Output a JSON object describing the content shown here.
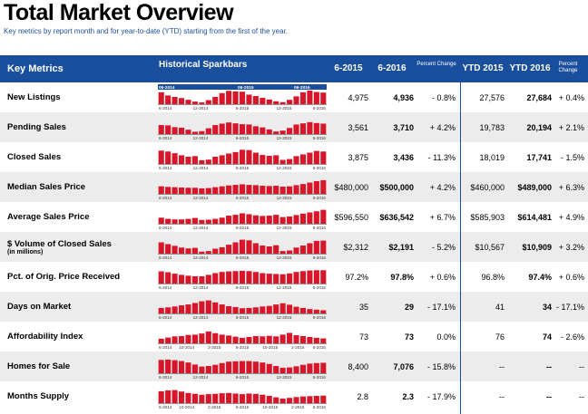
{
  "title": "Total Market Overview",
  "subtitle": "Key metrics by report month and for year-to-date (YTD) starting from the first of the year.",
  "header": {
    "key_metrics": "Key Metrics",
    "sparkbars": "Historical Sparkbars",
    "col_a": "6-2015",
    "col_b": "6-2016",
    "pct_change": "Percent Change",
    "ytd_a": "YTD 2015",
    "ytd_b": "YTD 2016",
    "ytd_pct_change": "Percent Change",
    "banner_labels": [
      "06-2014",
      "06-2015",
      "06-2016"
    ]
  },
  "colors": {
    "accent": "#1a4f9e",
    "bar": "#d7162a",
    "row_alt": "#ececec"
  },
  "rows": [
    {
      "label": "New Listings",
      "sublabel": "",
      "a": "4,975",
      "b": "4,936",
      "pc": "- 0.8%",
      "ya": "27,576",
      "yb": "27,684",
      "ypc": "+ 0.4%",
      "ticks": [
        "6-2014",
        "12-2014",
        "6-2015",
        "12-2015",
        "6-2016"
      ],
      "bars": [
        0.82,
        0.6,
        0.5,
        0.42,
        0.3,
        0.18,
        0.12,
        0.28,
        0.5,
        0.76,
        0.92,
        0.88,
        0.86,
        0.66,
        0.56,
        0.44,
        0.32,
        0.2,
        0.14,
        0.3,
        0.54,
        0.82,
        0.94,
        0.84,
        0.8
      ]
    },
    {
      "label": "Pending Sales",
      "sublabel": "",
      "a": "3,561",
      "b": "3,710",
      "pc": "+ 4.2%",
      "ya": "19,783",
      "yb": "20,194",
      "ypc": "+ 2.1%",
      "ticks": [
        "6-2014",
        "12-2014",
        "6-2015",
        "12-2015",
        "6-2016"
      ],
      "bars": [
        0.62,
        0.6,
        0.48,
        0.44,
        0.3,
        0.16,
        0.2,
        0.4,
        0.62,
        0.72,
        0.8,
        0.74,
        0.68,
        0.66,
        0.54,
        0.46,
        0.32,
        0.18,
        0.24,
        0.42,
        0.66,
        0.74,
        0.82,
        0.76,
        0.72
      ]
    },
    {
      "label": "Closed Sales",
      "sublabel": "",
      "a": "3,875",
      "b": "3,436",
      "pc": "- 11.3%",
      "ya": "18,019",
      "yb": "17,741",
      "ypc": "- 1.5%",
      "ticks": [
        "6-2014",
        "12-2014",
        "6-2015",
        "12-2015",
        "6-2016"
      ],
      "bars": [
        0.92,
        0.86,
        0.74,
        0.6,
        0.5,
        0.54,
        0.26,
        0.3,
        0.5,
        0.6,
        0.72,
        0.82,
        0.98,
        0.96,
        0.78,
        0.62,
        0.56,
        0.6,
        0.28,
        0.34,
        0.54,
        0.66,
        0.78,
        0.9,
        0.86
      ]
    },
    {
      "label": "Median Sales Price",
      "sublabel": "",
      "a": "$480,000",
      "b": "$500,000",
      "pc": "+ 4.2%",
      "ya": "$460,000",
      "yb": "$489,000",
      "ypc": "+ 6.3%",
      "ticks": [
        "6-2014",
        "12-2014",
        "6-2015",
        "12-2015",
        "6-2016"
      ],
      "bars": [
        0.52,
        0.48,
        0.46,
        0.44,
        0.42,
        0.42,
        0.38,
        0.4,
        0.46,
        0.52,
        0.58,
        0.62,
        0.66,
        0.62,
        0.6,
        0.56,
        0.54,
        0.56,
        0.5,
        0.52,
        0.6,
        0.68,
        0.78,
        0.88,
        0.94
      ]
    },
    {
      "label": "Average Sales Price",
      "sublabel": "",
      "a": "$596,550",
      "b": "$636,542",
      "pc": "+ 6.7%",
      "ya": "$585,903",
      "yb": "$614,481",
      "ypc": "+ 4.9%",
      "ticks": [
        "6-2014",
        "12-2014",
        "6-2015",
        "12-2015",
        "6-2016"
      ],
      "bars": [
        0.42,
        0.34,
        0.3,
        0.3,
        0.34,
        0.4,
        0.26,
        0.28,
        0.34,
        0.42,
        0.56,
        0.62,
        0.72,
        0.66,
        0.58,
        0.54,
        0.56,
        0.62,
        0.46,
        0.5,
        0.6,
        0.7,
        0.78,
        0.86,
        0.96
      ]
    },
    {
      "label": "$ Volume of Closed Sales",
      "sublabel": "(in millions)",
      "a": "$2,312",
      "b": "$2,191",
      "pc": "- 5.2%",
      "ya": "$10,567",
      "yb": "$10,909",
      "ypc": "+ 3.2%",
      "ticks": [
        "6-2014",
        "12-2014",
        "6-2015",
        "12-2015",
        "6-2016"
      ],
      "bars": [
        0.78,
        0.66,
        0.54,
        0.42,
        0.36,
        0.4,
        0.14,
        0.18,
        0.34,
        0.44,
        0.62,
        0.78,
        0.96,
        0.92,
        0.72,
        0.56,
        0.5,
        0.58,
        0.18,
        0.22,
        0.42,
        0.56,
        0.72,
        0.88,
        0.9
      ]
    },
    {
      "label": "Pct. of Orig. Price Received",
      "sublabel": "",
      "a": "97.2%",
      "b": "97.8%",
      "pc": "+ 0.6%",
      "ya": "96.8%",
      "yb": "97.4%",
      "ypc": "+ 0.6%",
      "ticks": [
        "6-2014",
        "12-2014",
        "6-2015",
        "12-2015",
        "6-2016"
      ],
      "bars": [
        0.84,
        0.78,
        0.68,
        0.6,
        0.54,
        0.5,
        0.5,
        0.6,
        0.72,
        0.8,
        0.84,
        0.86,
        0.88,
        0.86,
        0.8,
        0.72,
        0.68,
        0.66,
        0.64,
        0.7,
        0.8,
        0.86,
        0.9,
        0.92,
        0.92
      ]
    },
    {
      "label": "Days on Market",
      "sublabel": "",
      "a": "35",
      "b": "29",
      "pc": "- 17.1%",
      "ya": "41",
      "yb": "34",
      "ypc": "- 17.1%",
      "ticks": [
        "6-2014",
        "12-2014",
        "6-2015",
        "12-2015",
        "6-2016"
      ],
      "bars": [
        0.38,
        0.42,
        0.48,
        0.56,
        0.62,
        0.72,
        0.84,
        0.9,
        0.76,
        0.62,
        0.5,
        0.44,
        0.36,
        0.38,
        0.42,
        0.48,
        0.52,
        0.62,
        0.7,
        0.6,
        0.46,
        0.38,
        0.3,
        0.26,
        0.22
      ]
    },
    {
      "label": "Affordability Index",
      "sublabel": "",
      "a": "73",
      "b": "73",
      "pc": "0.0%",
      "ya": "76",
      "yb": "74",
      "ypc": "- 2.6%",
      "ticks": [
        "6-2014",
        "10-2014",
        "2-2015",
        "6-2015",
        "10-2015",
        "2-2016",
        "6-2016"
      ],
      "bars": [
        0.32,
        0.4,
        0.48,
        0.5,
        0.58,
        0.6,
        0.68,
        0.82,
        0.7,
        0.6,
        0.54,
        0.46,
        0.38,
        0.44,
        0.5,
        0.48,
        0.52,
        0.48,
        0.6,
        0.72,
        0.56,
        0.5,
        0.44,
        0.38,
        0.34
      ]
    },
    {
      "label": "Homes for Sale",
      "sublabel": "",
      "a": "8,400",
      "b": "7,076",
      "pc": "- 15.8%",
      "ya": "--",
      "yb": "--",
      "ypc": "--",
      "ticks": [
        "6-2014",
        "12-2014",
        "6-2015",
        "12-2015",
        "6-2016"
      ],
      "bars": [
        0.92,
        0.94,
        0.9,
        0.84,
        0.74,
        0.6,
        0.46,
        0.5,
        0.58,
        0.7,
        0.8,
        0.82,
        0.84,
        0.84,
        0.8,
        0.74,
        0.64,
        0.5,
        0.38,
        0.4,
        0.48,
        0.58,
        0.66,
        0.7,
        0.72
      ]
    },
    {
      "label": "Months Supply",
      "sublabel": "",
      "a": "2.8",
      "b": "2.3",
      "pc": "- 17.9%",
      "ya": "--",
      "yb": "--",
      "ypc": "--",
      "ticks": [
        "6-2014",
        "10-2014",
        "2-2015",
        "6-2015",
        "10-2015",
        "2-2016",
        "6-2016"
      ],
      "bars": [
        0.82,
        0.88,
        0.9,
        0.8,
        0.7,
        0.64,
        0.58,
        0.62,
        0.64,
        0.68,
        0.7,
        0.66,
        0.62,
        0.66,
        0.64,
        0.58,
        0.5,
        0.4,
        0.32,
        0.36,
        0.42,
        0.46,
        0.48,
        0.5,
        0.52
      ]
    }
  ]
}
